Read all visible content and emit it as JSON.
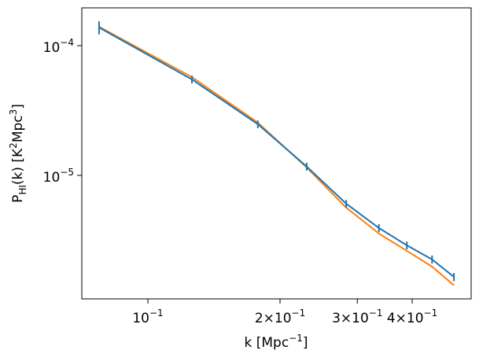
{
  "chart_data": {
    "type": "line",
    "xscale": "log",
    "yscale": "log",
    "xlabel": [
      "k [Mpc",
      "−1",
      "]"
    ],
    "ylabel": [
      "P",
      "HI",
      "(k) [K",
      "2",
      "Mpc",
      "3",
      "]"
    ],
    "x": [
      0.0774,
      0.126,
      0.178,
      0.23,
      0.283,
      0.336,
      0.389,
      0.444,
      0.498
    ],
    "series": [
      {
        "color": "#ff7f0e",
        "values": [
          0.00014,
          5.72e-05,
          2.55e-05,
          1.15e-05,
          5.64e-06,
          3.56e-06,
          2.62e-06,
          1.98e-06,
          1.42e-06
        ]
      },
      {
        "color": "#1f77b4",
        "values": [
          0.000138,
          5.49e-05,
          2.48e-05,
          1.17e-05,
          6.05e-06,
          3.93e-06,
          2.89e-06,
          2.25e-06,
          1.65e-06
        ],
        "errors": [
          1.6e-05,
          3.8e-06,
          1.7e-06,
          8e-07,
          4.2e-07,
          2.7e-07,
          2e-07,
          1.6e-07,
          1.2e-07
        ]
      }
    ],
    "xlim": [
      0.0707,
      0.545
    ],
    "ylim": [
      1.117e-06,
      0.0001955
    ],
    "xticks": [
      {
        "value": 0.1,
        "label": "10−1"
      },
      {
        "value": 0.2,
        "label": "2×10−1"
      },
      {
        "value": 0.3,
        "label": "3×10−1"
      },
      {
        "value": 0.4,
        "label": "4×10−1"
      }
    ],
    "yticks": [
      {
        "value": 1e-05,
        "label": "10−5"
      },
      {
        "value": 0.0001,
        "label": "10−4"
      }
    ]
  }
}
